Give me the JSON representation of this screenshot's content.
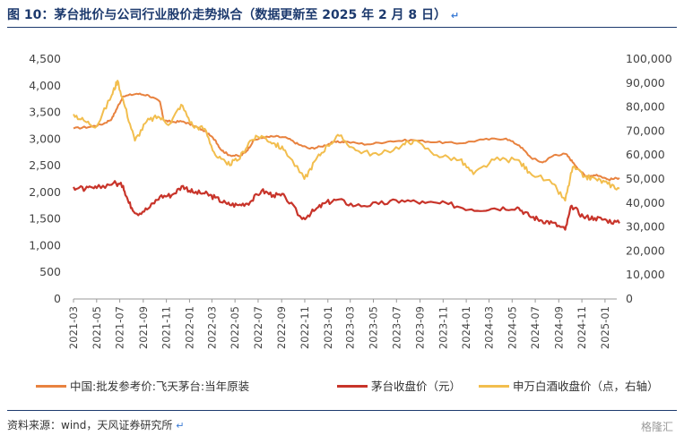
{
  "header": {
    "title": "图 10：茅台批价与公司行业股价走势拟合（数据更新至 2025 年 2 月 8 日）",
    "return_mark": "↵"
  },
  "footer": {
    "source": "资料来源：wind，天风证券研究所",
    "return_mark": "↵",
    "watermark": "格隆汇"
  },
  "colors": {
    "wholesale": "#E8823F",
    "stock": "#C8342A",
    "index": "#F2BE4E",
    "axis": "#999999",
    "title": "#1d3a6e"
  },
  "chart_data": {
    "type": "line",
    "title": "",
    "xlabel": "",
    "ylabel": "",
    "x_start": "2021-03",
    "x_end": "2025-02",
    "x_tick_labels": [
      "2021-03",
      "2021-05",
      "2021-07",
      "2021-09",
      "2021-11",
      "2022-01",
      "2022-03",
      "2022-05",
      "2022-07",
      "2022-09",
      "2022-11",
      "2023-01",
      "2023-03",
      "2023-05",
      "2023-07",
      "2023-09",
      "2023-11",
      "2024-01",
      "2024-03",
      "2024-05",
      "2024-07",
      "2024-09",
      "2024-11",
      "2025-01"
    ],
    "y_left": {
      "range": [
        0,
        4500
      ],
      "ticks": [
        "0",
        "500",
        "1,000",
        "1,500",
        "2,000",
        "2,500",
        "3,000",
        "3,500",
        "4,000",
        "4,500"
      ]
    },
    "y_right": {
      "range": [
        0,
        100000
      ],
      "ticks": [
        "0",
        "10,000",
        "20,000",
        "30,000",
        "40,000",
        "50,000",
        "60,000",
        "70,000",
        "80,000",
        "90,000",
        "100,000"
      ]
    },
    "grid": false,
    "legend_position": "bottom",
    "series": [
      {
        "name": "中国:批发参考价:飞天茅台:当年原装",
        "axis": "left",
        "color": "#E8823F",
        "points": [
          [
            "2021-03-01",
            3200
          ],
          [
            "2021-04-15",
            3230
          ],
          [
            "2021-05-20",
            3290
          ],
          [
            "2021-06-10",
            3380
          ],
          [
            "2021-06-25",
            3600
          ],
          [
            "2021-07-10",
            3800
          ],
          [
            "2021-08-15",
            3850
          ],
          [
            "2021-09-15",
            3820
          ],
          [
            "2021-10-15",
            3700
          ],
          [
            "2021-10-25",
            3350
          ],
          [
            "2021-11-15",
            3320
          ],
          [
            "2021-12-15",
            3330
          ],
          [
            "2022-01-15",
            3240
          ],
          [
            "2022-02-10",
            3150
          ],
          [
            "2022-03-10",
            2980
          ],
          [
            "2022-03-25",
            2800
          ],
          [
            "2022-04-15",
            2700
          ],
          [
            "2022-05-15",
            2680
          ],
          [
            "2022-06-01",
            2780
          ],
          [
            "2022-06-20",
            2980
          ],
          [
            "2022-07-15",
            3030
          ],
          [
            "2022-08-15",
            3050
          ],
          [
            "2022-09-15",
            3020
          ],
          [
            "2022-10-15",
            2900
          ],
          [
            "2022-11-15",
            2820
          ],
          [
            "2022-12-15",
            2860
          ],
          [
            "2023-01-15",
            2940
          ],
          [
            "2023-02-15",
            2950
          ],
          [
            "2023-04-15",
            2900
          ],
          [
            "2023-06-15",
            2960
          ],
          [
            "2023-08-15",
            2980
          ],
          [
            "2023-10-15",
            2940
          ],
          [
            "2023-12-15",
            2920
          ],
          [
            "2024-02-15",
            2990
          ],
          [
            "2024-04-15",
            3010
          ],
          [
            "2024-05-20",
            2880
          ],
          [
            "2024-06-20",
            2650
          ],
          [
            "2024-07-20",
            2560
          ],
          [
            "2024-08-20",
            2700
          ],
          [
            "2024-09-20",
            2720
          ],
          [
            "2024-10-10",
            2550
          ],
          [
            "2024-11-10",
            2300
          ],
          [
            "2024-12-10",
            2330
          ],
          [
            "2025-01-10",
            2240
          ],
          [
            "2025-02-08",
            2270
          ]
        ]
      },
      {
        "name": "茅台收盘价（元）",
        "axis": "left",
        "color": "#C8342A",
        "points": [
          [
            "2021-03-01",
            2100
          ],
          [
            "2021-04-01",
            2060
          ],
          [
            "2021-05-01",
            2080
          ],
          [
            "2021-06-15",
            2180
          ],
          [
            "2021-07-10",
            2120
          ],
          [
            "2021-07-25",
            1800
          ],
          [
            "2021-08-15",
            1600
          ],
          [
            "2021-09-15",
            1700
          ],
          [
            "2021-10-15",
            1920
          ],
          [
            "2021-11-15",
            1950
          ],
          [
            "2021-12-15",
            2120
          ],
          [
            "2022-01-10",
            2000
          ],
          [
            "2022-02-10",
            1980
          ],
          [
            "2022-03-10",
            1900
          ],
          [
            "2022-04-10",
            1780
          ],
          [
            "2022-05-10",
            1760
          ],
          [
            "2022-06-10",
            1820
          ],
          [
            "2022-07-10",
            2030
          ],
          [
            "2022-08-10",
            1950
          ],
          [
            "2022-09-10",
            1920
          ],
          [
            "2022-10-25",
            1500
          ],
          [
            "2022-11-25",
            1650
          ],
          [
            "2022-12-25",
            1800
          ],
          [
            "2023-01-25",
            1860
          ],
          [
            "2023-03-15",
            1750
          ],
          [
            "2023-05-15",
            1780
          ],
          [
            "2023-07-15",
            1850
          ],
          [
            "2023-09-15",
            1800
          ],
          [
            "2023-11-15",
            1780
          ],
          [
            "2024-01-15",
            1680
          ],
          [
            "2024-03-15",
            1700
          ],
          [
            "2024-05-15",
            1720
          ],
          [
            "2024-06-15",
            1560
          ],
          [
            "2024-07-15",
            1480
          ],
          [
            "2024-08-15",
            1430
          ],
          [
            "2024-09-18",
            1300
          ],
          [
            "2024-10-05",
            1750
          ],
          [
            "2024-11-05",
            1540
          ],
          [
            "2024-12-05",
            1520
          ],
          [
            "2025-01-05",
            1480
          ],
          [
            "2025-02-08",
            1420
          ]
        ]
      },
      {
        "name": "申万白酒收盘价（点，右轴）",
        "axis": "right",
        "color": "#F2BE4E",
        "points": [
          [
            "2021-03-01",
            77000
          ],
          [
            "2021-04-01",
            74000
          ],
          [
            "2021-05-01",
            72000
          ],
          [
            "2021-06-10",
            85000
          ],
          [
            "2021-06-25",
            91000
          ],
          [
            "2021-07-15",
            80000
          ],
          [
            "2021-08-10",
            66000
          ],
          [
            "2021-09-10",
            74000
          ],
          [
            "2021-10-10",
            76000
          ],
          [
            "2021-11-10",
            73000
          ],
          [
            "2021-12-10",
            81000
          ],
          [
            "2022-01-10",
            72000
          ],
          [
            "2022-02-10",
            71000
          ],
          [
            "2022-03-10",
            60000
          ],
          [
            "2022-04-10",
            56000
          ],
          [
            "2022-05-10",
            58000
          ],
          [
            "2022-06-10",
            66000
          ],
          [
            "2022-07-10",
            68000
          ],
          [
            "2022-08-10",
            65000
          ],
          [
            "2022-09-10",
            62000
          ],
          [
            "2022-10-31",
            50000
          ],
          [
            "2022-11-30",
            58000
          ],
          [
            "2022-12-31",
            64000
          ],
          [
            "2023-01-31",
            68000
          ],
          [
            "2023-03-15",
            62000
          ],
          [
            "2023-05-15",
            60000
          ],
          [
            "2023-07-15",
            64000
          ],
          [
            "2023-08-15",
            66000
          ],
          [
            "2023-10-15",
            60000
          ],
          [
            "2023-12-15",
            58000
          ],
          [
            "2024-01-20",
            52000
          ],
          [
            "2024-03-15",
            58000
          ],
          [
            "2024-05-15",
            58000
          ],
          [
            "2024-06-15",
            53000
          ],
          [
            "2024-08-15",
            48000
          ],
          [
            "2024-09-18",
            41000
          ],
          [
            "2024-10-08",
            55000
          ],
          [
            "2024-11-08",
            51000
          ],
          [
            "2024-12-08",
            50000
          ],
          [
            "2025-01-08",
            48000
          ],
          [
            "2025-02-08",
            46000
          ]
        ]
      }
    ]
  }
}
